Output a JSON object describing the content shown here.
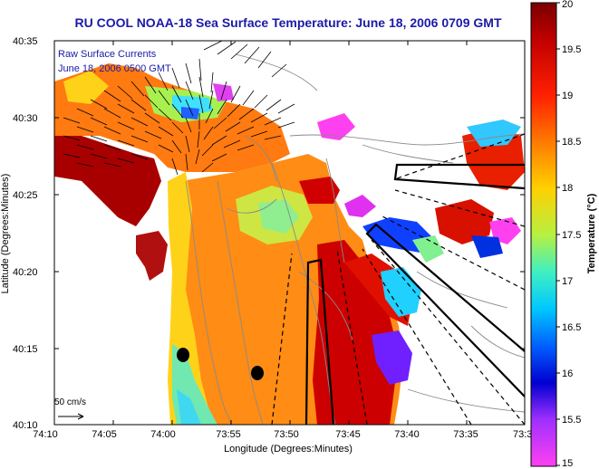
{
  "title": "RU COOL  NOAA-18  Sea Surface Temperature:  June 18, 2006 0709 GMT",
  "xlabel": "Longitude (Degrees:Minutes)",
  "ylabel": "Latitude (Degrees:Minutes)",
  "colorbar": {
    "label": "Temperature (°C)",
    "ticks": [
      "20",
      "19.5",
      "19",
      "18.5",
      "18",
      "17.5",
      "17",
      "16.5",
      "16",
      "15.5",
      "15"
    ],
    "min": 15,
    "max": 20
  },
  "x_ticks": [
    "74:10",
    "74:05",
    "74:00",
    "73:55",
    "73:50",
    "73:45",
    "73:40",
    "73:35",
    "73:3"
  ],
  "y_ticks": [
    "40:35",
    "40:30",
    "40:25",
    "40:20",
    "40:15",
    "40:10"
  ],
  "annotation_line1": "Raw Surface Currents",
  "annotation_line2": "June 18, 2006 0500 GMT",
  "scale_label": "50 cm/s",
  "colors": {
    "title": "#1a1aa8",
    "land": "#ffffff",
    "no_data": "#ffffff"
  }
}
